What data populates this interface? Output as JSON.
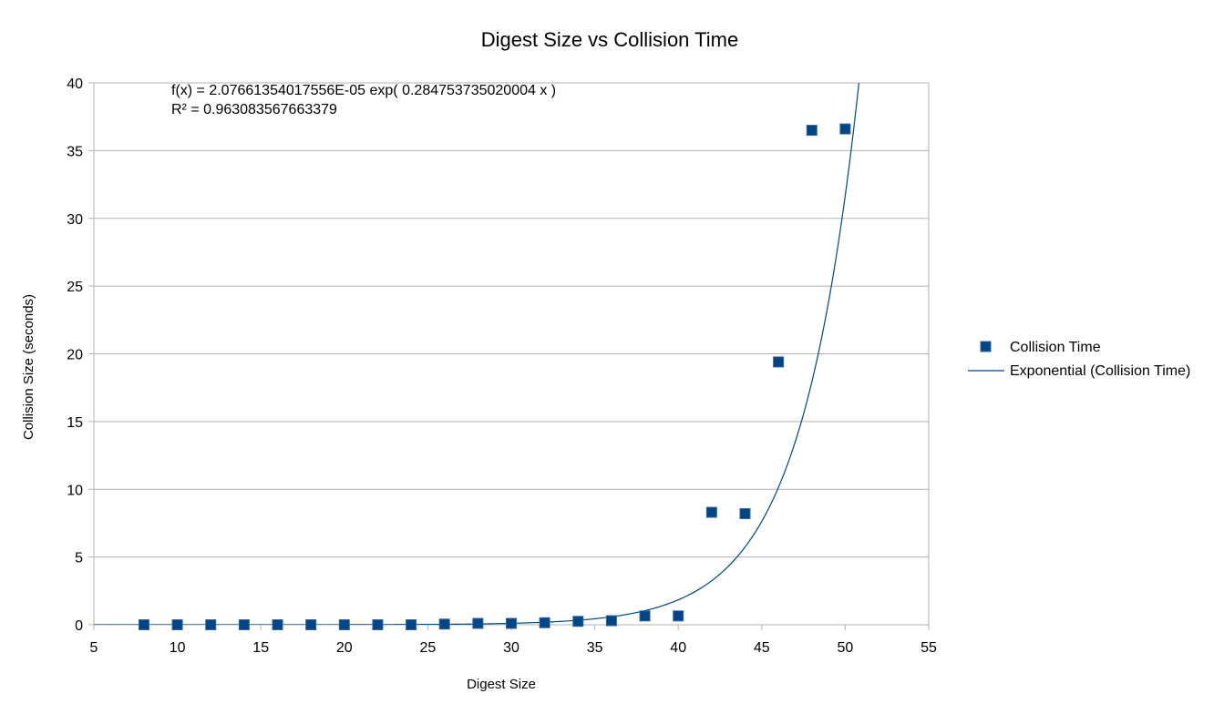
{
  "chart_data": {
    "type": "scatter",
    "title": "Digest Size vs Collision Time",
    "xlabel": "Digest Size",
    "ylabel": "Collision Size (seconds)",
    "xlim": [
      5,
      55
    ],
    "ylim": [
      0,
      40
    ],
    "x_ticks": [
      5,
      10,
      15,
      20,
      25,
      30,
      35,
      40,
      45,
      50,
      55
    ],
    "y_ticks": [
      0,
      5,
      10,
      15,
      20,
      25,
      30,
      35,
      40
    ],
    "grid": "horizontal",
    "legend_position": "right",
    "series": [
      {
        "name": "Collision Time",
        "marker": "square",
        "color": "#004586",
        "x": [
          8,
          10,
          12,
          14,
          16,
          18,
          20,
          22,
          24,
          26,
          28,
          30,
          32,
          34,
          36,
          38,
          40,
          42,
          44,
          46,
          48,
          50
        ],
        "y": [
          0,
          0,
          0,
          0,
          0,
          0,
          0,
          0,
          0,
          0.05,
          0.1,
          0.1,
          0.15,
          0.25,
          0.3,
          0.65,
          0.65,
          8.3,
          8.2,
          19.4,
          36.5,
          36.6
        ]
      }
    ],
    "trendline": {
      "name": "Exponential (Collision Time)",
      "type": "exponential",
      "a": 2.07661354017556e-05,
      "b": 0.284753735020004,
      "color": "#004586"
    },
    "annotations": {
      "equation": "f(x) = 2.07661354017556E-05 exp( 0.284753735020004 x )",
      "r_squared": "R² = 0.963083567663379"
    }
  }
}
